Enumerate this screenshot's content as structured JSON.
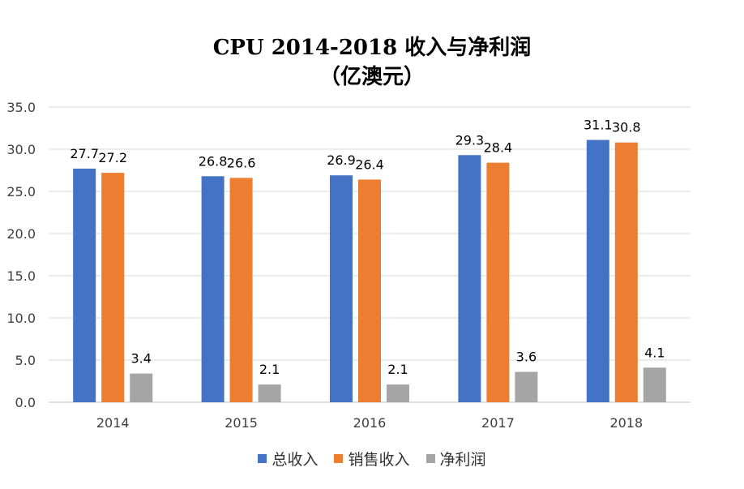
{
  "chart_data": {
    "type": "bar",
    "title_lines": [
      "CPU 2014-2018 收入与净利润",
      "（亿澳元）"
    ],
    "categories": [
      "2014",
      "2015",
      "2016",
      "2017",
      "2018"
    ],
    "series": [
      {
        "name": "总收入",
        "color": "#4472C4",
        "values": [
          27.7,
          26.8,
          26.9,
          29.3,
          31.1
        ]
      },
      {
        "name": "销售收入",
        "color": "#ED7D31",
        "values": [
          27.2,
          26.6,
          26.4,
          28.4,
          30.8
        ]
      },
      {
        "name": "净利润",
        "color": "#A5A5A5",
        "values": [
          3.4,
          2.1,
          2.1,
          3.6,
          4.1
        ]
      }
    ],
    "ylim": [
      0,
      35
    ],
    "yticks": [
      "0.0",
      "5.0",
      "10.0",
      "15.0",
      "20.0",
      "25.0",
      "30.0",
      "35.0"
    ],
    "grid": true,
    "legend_position": "bottom"
  }
}
